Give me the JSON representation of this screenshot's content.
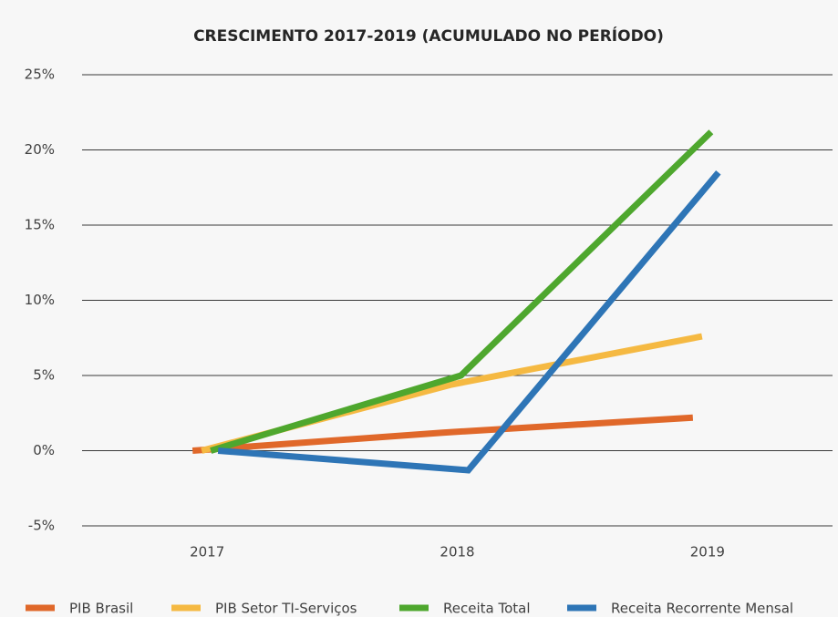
{
  "chart_data": {
    "type": "line",
    "title": "CRESCIMENTO 2017-2019 (ACUMULADO NO PERÍODO)",
    "categories": [
      "2017",
      "2018",
      "2019"
    ],
    "series": [
      {
        "name": "PIB Brasil",
        "color": "#e0682a",
        "values": [
          0,
          1.2,
          2.2
        ]
      },
      {
        "name": "PIB Setor TI-Serviços",
        "color": "#f5b942",
        "values": [
          0,
          4.4,
          7.6
        ]
      },
      {
        "name": "Receita Total",
        "color": "#4ea72e",
        "values": [
          0,
          5.0,
          21.2
        ]
      },
      {
        "name": "Receita Recorrente Mensal",
        "color": "#2e75b6",
        "values": [
          0,
          -1.3,
          18.5
        ]
      }
    ],
    "ylim": [
      -5,
      25
    ],
    "yticks": [
      {
        "value": -5,
        "label": "-5%"
      },
      {
        "value": 0,
        "label": "0%"
      },
      {
        "value": 5,
        "label": "5%"
      },
      {
        "value": 10,
        "label": "10%"
      },
      {
        "value": 15,
        "label": "15%"
      },
      {
        "value": 20,
        "label": "20%"
      },
      {
        "value": 25,
        "label": "25%"
      }
    ],
    "grid": true,
    "legend": "bottom"
  }
}
